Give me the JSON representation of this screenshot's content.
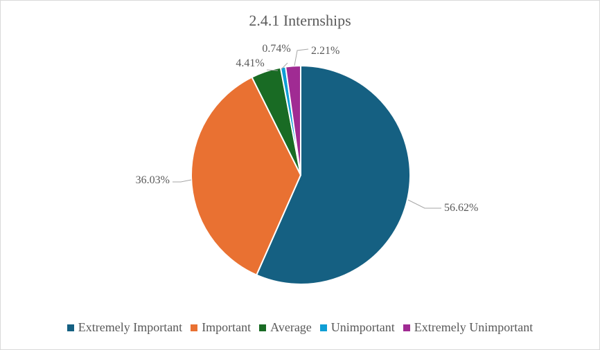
{
  "chart_data": {
    "type": "pie",
    "title": "2.4.1 Internships",
    "categories": [
      "Extremely Important",
      "Important",
      "Average",
      "Unimportant",
      "Extremely Unimportant"
    ],
    "values": [
      56.62,
      36.03,
      4.41,
      0.74,
      2.21
    ],
    "data_labels": [
      "56.62%",
      "36.03%",
      "4.41%",
      "0.74%",
      "2.21%"
    ],
    "colors": [
      "#156082",
      "#e97132",
      "#196b24",
      "#0f9ed5",
      "#a02b93"
    ],
    "legend_position": "bottom"
  }
}
